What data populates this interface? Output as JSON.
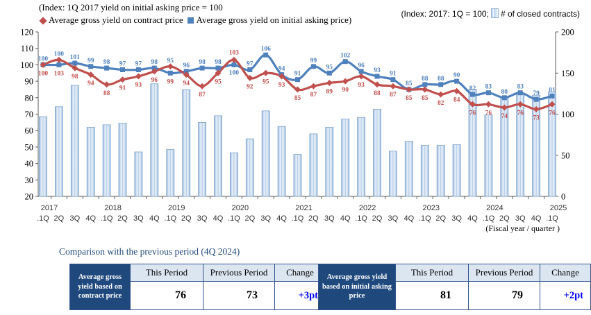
{
  "header": {
    "index_note_left": "(Index: 1Q 2017 yield on initial asking price = 100",
    "legend": [
      {
        "icon": "red-diamond",
        "label": "Average gross yield on contract price"
      },
      {
        "icon": "blue-square",
        "label": "Average gross yield on initial asking price)"
      }
    ],
    "index_note_right_prefix": "(Index: 2017: 1Q = 100;",
    "index_note_right_icon": "light-blue-bar",
    "index_note_right_suffix": "# of closed contracts)"
  },
  "chart_data": {
    "type": "combo-bar-line",
    "years": [
      "2017",
      "2018",
      "2019",
      "2020",
      "2021",
      "2022",
      "2023",
      "2024",
      "2025"
    ],
    "quarter_labels": [
      ".1Q",
      "2Q",
      "3Q",
      "4Q",
      ".1Q",
      "2Q",
      "3Q",
      "4Q",
      ".1Q",
      "2Q",
      "3Q",
      "4Q",
      ".1Q",
      "2Q",
      "3Q",
      "4Q",
      ".1Q",
      "2Q",
      "3Q",
      "4Q",
      ".1Q",
      "2Q",
      "3Q",
      "4Q",
      ".1Q",
      "2Q",
      "3Q",
      "4Q",
      ".1Q",
      "2Q",
      "3Q",
      "4Q",
      ".1Q"
    ],
    "series": [
      {
        "name": "Average gross yield on contract price",
        "type": "line",
        "marker": "diamond",
        "color": "#C0504D",
        "axis": "left",
        "values": [
          100,
          103,
          98,
          94,
          88,
          91,
          93,
          96,
          99,
          94,
          87,
          95,
          103,
          92,
          95,
          93,
          85,
          87,
          89,
          90,
          93,
          88,
          87,
          85,
          85,
          82,
          84,
          76,
          76,
          74,
          76,
          73,
          76
        ]
      },
      {
        "name": "Average gross yield on initial asking price",
        "type": "line",
        "marker": "square",
        "color": "#4F81BD",
        "axis": "left",
        "values": [
          100,
          100,
          101,
          99,
          98,
          97,
          97,
          98,
          95,
          96,
          98,
          98,
          100,
          97,
          106,
          94,
          91,
          99,
          95,
          102,
          96,
          93,
          91,
          85,
          88,
          88,
          90,
          82,
          83,
          80,
          83,
          79,
          81
        ]
      },
      {
        "name": "# of closed contracts",
        "type": "bar",
        "color": "#C6D9F1",
        "border": "#7FA5CE",
        "axis": "right",
        "values": [
          97,
          109,
          135,
          84,
          87,
          89,
          54,
          137,
          57,
          130,
          90,
          98,
          53,
          70,
          104,
          85,
          51,
          76,
          84,
          94,
          96,
          106,
          55,
          67,
          62,
          62,
          63,
          130,
          99,
          120,
          124,
          123,
          127
        ]
      }
    ],
    "left_axis": {
      "min": 20,
      "max": 120,
      "step": 10,
      "ticks": [
        20,
        30,
        40,
        50,
        60,
        70,
        80,
        90,
        100,
        110,
        120
      ]
    },
    "right_axis": {
      "min": 0,
      "max": 200,
      "step": 50,
      "ticks": [
        0,
        50,
        100,
        150,
        200
      ]
    },
    "x_axis_note": "(Fiscal year / quarter )",
    "grid": false,
    "label_swap_indices": [
      12
    ]
  },
  "comparison": {
    "title": "Comparison with the previous period (4Q 2024)",
    "col_headers": [
      "This Period",
      "Previous Period",
      "Change"
    ],
    "tables": [
      {
        "row_label": "Average gross yield based on contract price",
        "this_period": "76",
        "previous_period": "73",
        "change": "+3pt"
      },
      {
        "row_label": "Average gross yield based on initial asking price",
        "this_period": "81",
        "previous_period": "79",
        "change": "+2pt"
      }
    ]
  },
  "colors": {
    "contract_line": "#C0504D",
    "asking_line": "#4F81BD",
    "bar_border": "#7FA5CE",
    "axis": "#595959",
    "table_label_bg": "#1F497D",
    "table_header_bg": "#DCE6F1",
    "change_text": "#0000FF",
    "title_text": "#1F497D"
  }
}
